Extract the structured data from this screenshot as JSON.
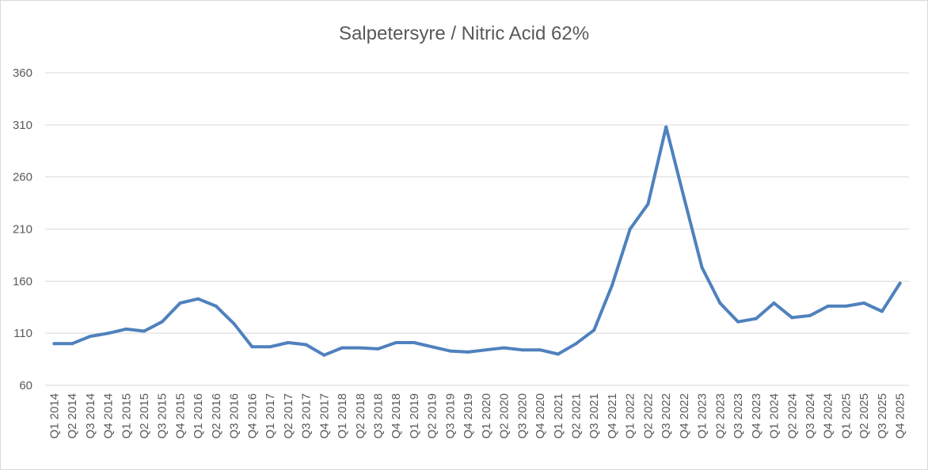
{
  "chart_data": {
    "type": "line",
    "title": "Salpetersyre / Nitric Acid 62%",
    "xlabel": "",
    "ylabel": "",
    "ylim": [
      60,
      360
    ],
    "yticks": [
      60,
      110,
      160,
      210,
      260,
      310,
      360
    ],
    "grid": true,
    "legend": "none",
    "line_color": "#4f81bd",
    "categories": [
      "Q1 2014",
      "Q2 2014",
      "Q3 2014",
      "Q4 2014",
      "Q1 2015",
      "Q2 2015",
      "Q3 2015",
      "Q4 2015",
      "Q1 2016",
      "Q2 2016",
      "Q3 2016",
      "Q4 2016",
      "Q1 2017",
      "Q2 2017",
      "Q3 2017",
      "Q4 2017",
      "Q1 2018",
      "Q2 2018",
      "Q3 2018",
      "Q4 2018",
      "Q1 2019",
      "Q2 2019",
      "Q3 2019",
      "Q4 2019",
      "Q1 2020",
      "Q2 2020",
      "Q3 2020",
      "Q4 2020",
      "Q1 2021",
      "Q2 2021",
      "Q3 2021",
      "Q4 2021",
      "Q1 2022",
      "Q2 2022",
      "Q3 2022",
      "Q4 2022",
      "Q1 2023",
      "Q2 2023",
      "Q3 2023",
      "Q4 2023",
      "Q1 2024",
      "Q2 2024",
      "Q3 2024",
      "Q4 2024",
      "Q1 2025",
      "Q2 2025",
      "Q3 2025",
      "Q4 2025"
    ],
    "values": [
      100,
      100,
      107,
      110,
      114,
      112,
      121,
      139,
      143,
      136,
      119,
      97,
      97,
      101,
      99,
      89,
      96,
      96,
      95,
      101,
      101,
      97,
      93,
      92,
      94,
      96,
      94,
      94,
      90,
      100,
      113,
      156,
      210,
      234,
      308,
      240,
      173,
      139,
      121,
      124,
      139,
      125,
      127,
      136,
      136,
      139,
      131,
      158
    ]
  }
}
